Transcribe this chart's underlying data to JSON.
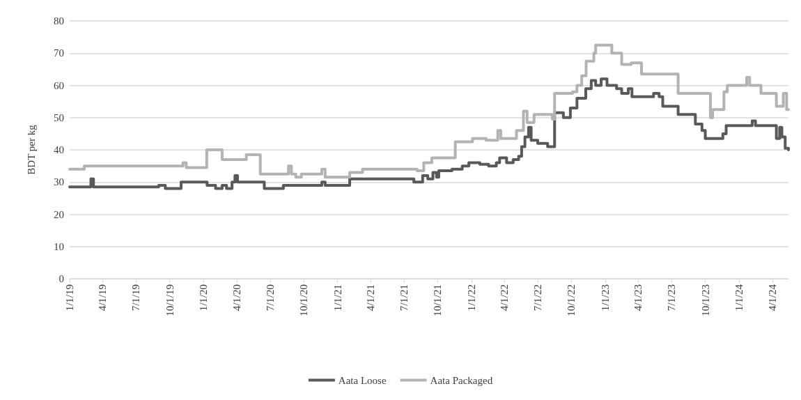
{
  "chart_data": {
    "type": "step",
    "ylabel": "BDT per kg",
    "xlim": [
      "2019-01-01",
      "2024-05-15"
    ],
    "ylim": [
      0,
      80
    ],
    "yticks": [
      0,
      10,
      20,
      30,
      40,
      50,
      60,
      70,
      80
    ],
    "xticks": [
      {
        "value": "2019-01-01",
        "label": "1/1/19"
      },
      {
        "value": "2019-04-01",
        "label": "4/1/19"
      },
      {
        "value": "2019-07-01",
        "label": "7/1/19"
      },
      {
        "value": "2019-10-01",
        "label": "10/1/19"
      },
      {
        "value": "2020-01-01",
        "label": "1/1/20"
      },
      {
        "value": "2020-04-01",
        "label": "4/1/20"
      },
      {
        "value": "2020-07-01",
        "label": "7/1/20"
      },
      {
        "value": "2020-10-01",
        "label": "10/1/20"
      },
      {
        "value": "2021-01-01",
        "label": "1/1/21"
      },
      {
        "value": "2021-04-01",
        "label": "4/1/21"
      },
      {
        "value": "2021-07-01",
        "label": "7/1/21"
      },
      {
        "value": "2021-10-01",
        "label": "10/1/21"
      },
      {
        "value": "2022-01-01",
        "label": "1/1/22"
      },
      {
        "value": "2022-04-01",
        "label": "4/1/22"
      },
      {
        "value": "2022-07-01",
        "label": "7/1/22"
      },
      {
        "value": "2022-10-01",
        "label": "10/1/22"
      },
      {
        "value": "2023-01-01",
        "label": "1/1/23"
      },
      {
        "value": "2023-04-01",
        "label": "4/1/23"
      },
      {
        "value": "2023-07-01",
        "label": "7/1/23"
      },
      {
        "value": "2023-10-01",
        "label": "10/1/23"
      },
      {
        "value": "2024-01-01",
        "label": "1/1/24"
      },
      {
        "value": "2024-04-01",
        "label": "4/1/24"
      }
    ],
    "grid": "y",
    "legend": "bottom",
    "marker": "none",
    "line_style": "solid",
    "series": [
      {
        "name": "Aata Loose",
        "color": "#595959",
        "x": [
          "2019-01-01",
          "2019-02-28",
          "2019-03-07",
          "2019-09-01",
          "2019-09-19",
          "2019-11-01",
          "2020-01-11",
          "2020-02-03",
          "2020-02-21",
          "2020-03-04",
          "2020-03-19",
          "2020-03-27",
          "2020-04-03",
          "2020-06-15",
          "2020-08-06",
          "2020-11-19",
          "2020-11-28",
          "2021-02-03",
          "2021-07-28",
          "2021-08-21",
          "2021-09-04",
          "2021-09-18",
          "2021-09-28",
          "2021-10-04",
          "2021-11-09",
          "2021-12-07",
          "2021-12-25",
          "2022-01-24",
          "2022-02-17",
          "2022-03-10",
          "2022-03-19",
          "2022-04-07",
          "2022-04-25",
          "2022-05-10",
          "2022-05-18",
          "2022-05-27",
          "2022-06-06",
          "2022-06-13",
          "2022-07-01",
          "2022-07-28",
          "2022-08-16",
          "2022-09-09",
          "2022-09-28",
          "2022-10-16",
          "2022-11-09",
          "2022-11-24",
          "2022-12-06",
          "2022-12-21",
          "2023-01-06",
          "2023-02-01",
          "2023-02-15",
          "2023-03-05",
          "2023-03-15",
          "2023-05-13",
          "2023-05-28",
          "2023-06-07",
          "2023-07-19",
          "2023-09-04",
          "2023-09-22",
          "2023-10-01",
          "2023-11-18",
          "2023-11-27",
          "2024-02-06",
          "2024-02-15",
          "2024-04-12",
          "2024-04-21",
          "2024-04-27",
          "2024-05-06",
          "2024-05-15"
        ],
        "values": [
          28.5,
          31,
          28.5,
          29,
          28,
          30,
          29,
          28,
          29,
          28,
          30,
          32,
          30,
          28,
          29,
          30,
          29,
          31,
          30,
          32,
          31,
          33,
          31.5,
          33.5,
          34,
          35,
          36,
          35.5,
          35,
          36,
          37.5,
          36,
          37,
          38,
          41,
          44,
          47,
          43,
          42,
          41,
          51.5,
          50,
          53,
          56,
          59,
          61.5,
          60,
          62,
          60,
          59,
          57.5,
          59,
          56.5,
          57.5,
          56.5,
          53.5,
          51,
          48,
          46,
          43.5,
          45,
          47.5,
          49,
          47.5,
          43.5,
          47,
          44,
          40.5,
          40
        ]
      },
      {
        "name": "Aata Packaged",
        "color": "#b3b3b3",
        "x": [
          "2019-01-01",
          "2019-02-10",
          "2019-11-06",
          "2019-11-15",
          "2020-01-10",
          "2020-02-21",
          "2020-04-27",
          "2020-06-04",
          "2020-08-20",
          "2020-08-28",
          "2020-09-09",
          "2020-09-24",
          "2020-11-19",
          "2020-11-28",
          "2021-02-03",
          "2021-03-10",
          "2021-08-06",
          "2021-08-24",
          "2021-09-15",
          "2021-11-18",
          "2022-01-04",
          "2022-02-10",
          "2022-03-14",
          "2022-03-22",
          "2022-05-04",
          "2022-05-23",
          "2022-06-02",
          "2022-06-21",
          "2022-08-10",
          "2022-08-16",
          "2022-10-04",
          "2022-10-16",
          "2022-10-29",
          "2022-11-10",
          "2022-12-01",
          "2022-12-06",
          "2023-01-19",
          "2023-02-15",
          "2023-03-13",
          "2023-04-10",
          "2023-07-19",
          "2023-10-15",
          "2023-10-21",
          "2023-11-21",
          "2023-11-30",
          "2024-01-22",
          "2024-01-30",
          "2024-03-01",
          "2024-04-12",
          "2024-05-01",
          "2024-05-10",
          "2024-05-15"
        ],
        "values": [
          34,
          35,
          36,
          34.5,
          40,
          37,
          38.5,
          32.5,
          35,
          32.5,
          31.5,
          32.5,
          34,
          31.5,
          33,
          34,
          33.5,
          36,
          37.5,
          42.5,
          43.5,
          43,
          46,
          43.5,
          46,
          52,
          48.5,
          51,
          49.5,
          57.5,
          58,
          60,
          63,
          67.5,
          70,
          72.5,
          70,
          66.5,
          67,
          63.5,
          57.5,
          50,
          52.5,
          58,
          60,
          62.5,
          60,
          57.5,
          53.5,
          57.5,
          52.5,
          52.5
        ]
      }
    ]
  }
}
